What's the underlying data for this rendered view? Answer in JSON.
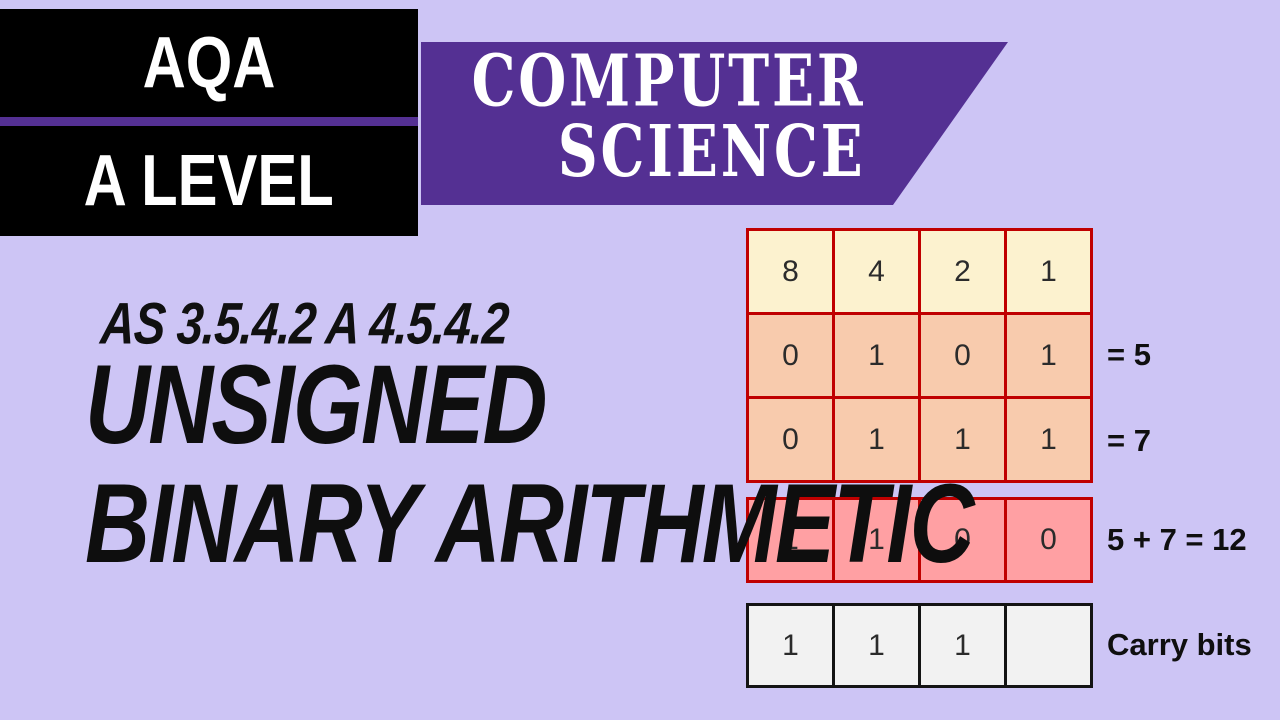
{
  "badge": {
    "line1": "AQA",
    "line2": "A LEVEL"
  },
  "banner": {
    "line1": "COMPUTER",
    "line2": "SCIENCE"
  },
  "heading": {
    "spec_ref": "AS 3.5.4.2 A 4.5.4.2",
    "title_line1": "UNSIGNED",
    "title_line2": "BINARY ARITHMETIC"
  },
  "binary_table": {
    "place_values": [
      "8",
      "4",
      "2",
      "1"
    ],
    "operand_rows": [
      {
        "bits": [
          "0",
          "1",
          "0",
          "1"
        ],
        "label": "= 5"
      },
      {
        "bits": [
          "0",
          "1",
          "1",
          "1"
        ],
        "label": "= 7"
      }
    ],
    "result_row": {
      "bits": [
        "1",
        "1",
        "0",
        "0"
      ],
      "label": "5 + 7 = 12"
    },
    "carry_row": {
      "bits": [
        "1",
        "1",
        "1",
        ""
      ],
      "label": "Carry bits"
    }
  },
  "colors": {
    "background": "#CDC5F5",
    "ribbon_purple": "#543093",
    "badge_black": "#000000",
    "badge_text": "#FFFFFF",
    "header_row_fill": "#FCF2CF",
    "operand_row_fill": "#F8CBAD",
    "result_row_fill": "#FFA0A3",
    "carry_row_fill": "#F2F2F2",
    "table_border": "#C00000",
    "carry_border": "#141414",
    "title_text": "#0E0E0E"
  }
}
